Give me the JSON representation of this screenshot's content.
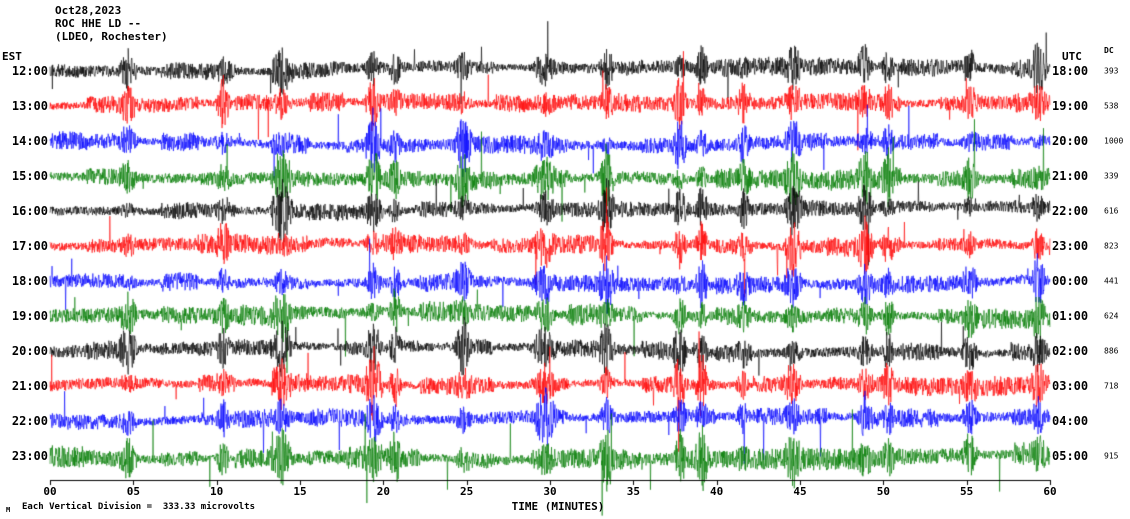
{
  "header": {
    "date": "Oct28,2023",
    "station": "ROC HHE LD --",
    "location": "(LDEO, Rochester)"
  },
  "axis": {
    "left_title": "EST",
    "right_title": "UTC",
    "dc_title": "DC",
    "x_title": "TIME (MINUTES)",
    "x_ticks": [
      "00",
      "05",
      "10",
      "15",
      "20",
      "25",
      "30",
      "35",
      "40",
      "45",
      "50",
      "55",
      "60"
    ]
  },
  "footer": {
    "scale_note": "Each Vertical Division =  333.33 microvolts",
    "watermark": "M"
  },
  "colors": {
    "black": "#000000",
    "red": "#ff0000",
    "blue": "#0000ff",
    "green": "#007a00"
  },
  "chart_data": {
    "type": "line",
    "subtype": "seismogram-helicorder",
    "title": "ROC HHE LD -- (LDEO, Rochester) Oct28,2023",
    "xlabel": "TIME (MINUTES)",
    "x_range_minutes": [
      0,
      60
    ],
    "minutes_per_row": 60,
    "vertical_division_microvolts": 333.33,
    "rows": [
      {
        "est": "12:00",
        "utc": "18:00",
        "dc": "393",
        "color": "#000000"
      },
      {
        "est": "13:00",
        "utc": "19:00",
        "dc": "538",
        "color": "#ff0000"
      },
      {
        "est": "14:00",
        "utc": "20:00",
        "dc": "1000",
        "color": "#0000ff"
      },
      {
        "est": "15:00",
        "utc": "21:00",
        "dc": "339",
        "color": "#007a00"
      },
      {
        "est": "16:00",
        "utc": "22:00",
        "dc": "616",
        "color": "#000000"
      },
      {
        "est": "17:00",
        "utc": "23:00",
        "dc": "823",
        "color": "#ff0000"
      },
      {
        "est": "18:00",
        "utc": "00:00",
        "dc": "441",
        "color": "#0000ff"
      },
      {
        "est": "19:00",
        "utc": "01:00",
        "dc": "624",
        "color": "#007a00"
      },
      {
        "est": "20:00",
        "utc": "02:00",
        "dc": "886",
        "color": "#000000"
      },
      {
        "est": "21:00",
        "utc": "03:00",
        "dc": "718",
        "color": "#ff0000"
      },
      {
        "est": "22:00",
        "utc": "04:00",
        "dc": "",
        "color": "#0000ff"
      },
      {
        "est": "23:00",
        "utc": "05:00",
        "dc": "915",
        "color": "#007a00"
      }
    ]
  }
}
